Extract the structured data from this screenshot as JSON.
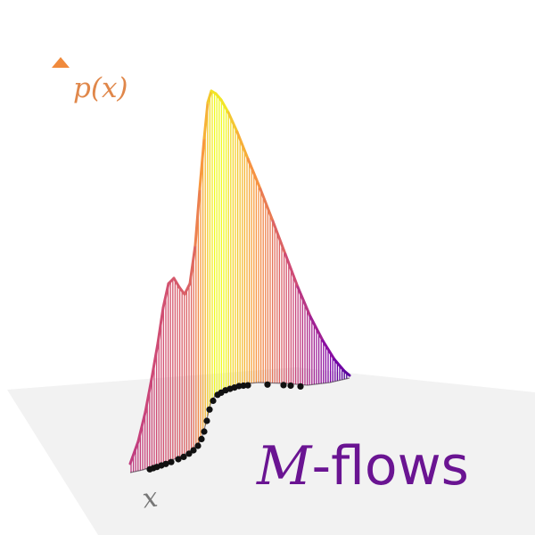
{
  "figure": {
    "axis_label": "p(x)",
    "x_label": "x",
    "title_symbol": "M",
    "title_text": "-flows",
    "colors": {
      "title": "#6a1492",
      "axis_label": "#e0874a",
      "ground_plane": "#f2f2f2",
      "samples": "#111111",
      "colormap": [
        "#0d0887",
        "#7e03a8",
        "#cc4778",
        "#f89540",
        "#f0f921"
      ]
    }
  }
}
